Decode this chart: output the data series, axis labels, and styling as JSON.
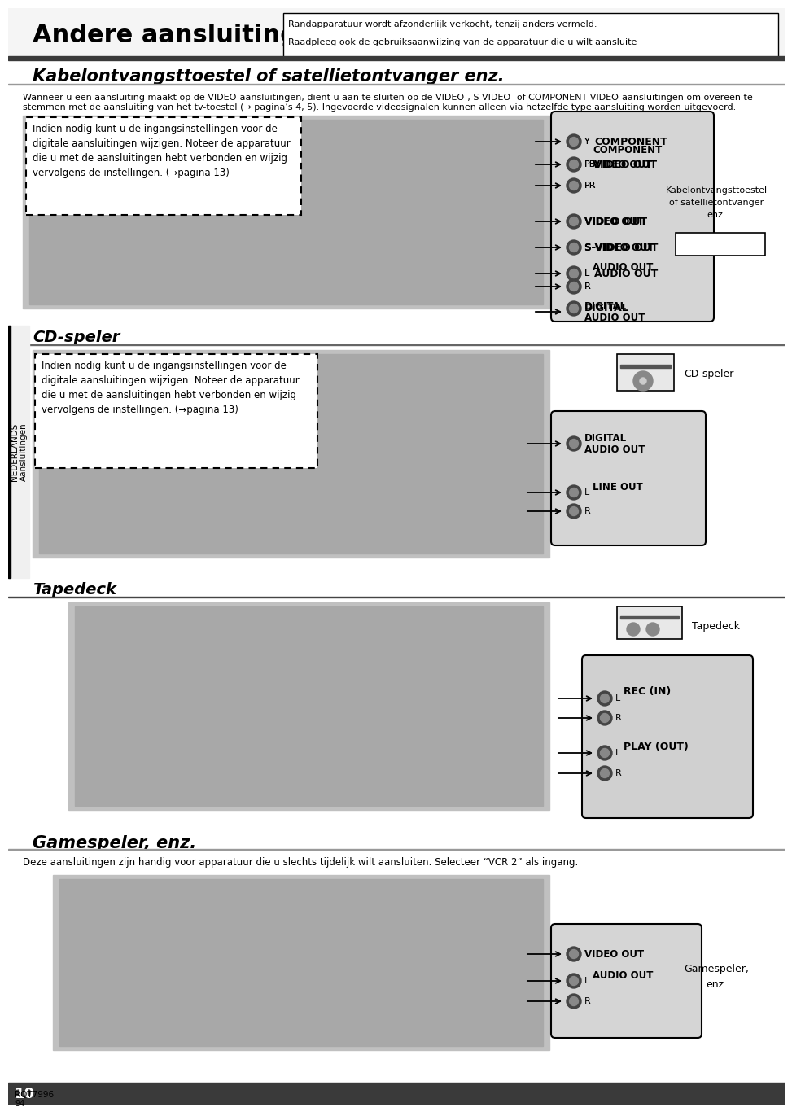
{
  "page_bg": "#ffffff",
  "title_main": "Andere aansluitingen",
  "notice_line1": "Randapparatuur wordt afzonderlijk verkocht, tenzij anders vermeld.",
  "notice_line2": "Raadpleeg ook de gebruiksaanwijzing van de apparatuur die u wilt aansluite",
  "sec1_title": "Kabelontvangsttoestel of satellietontvanger enz.",
  "sec1_body1": "Wanneer u een aansluiting maakt op de VIDEO-aansluitingen, dient u aan te sluiten op de VIDEO-, S VIDEO- of COMPONENT VIDEO-aansluitingen om overeen te",
  "sec1_body2": "stemmen met de aansluiting van het tv-toestel (→ pagina’s 4, 5). Ingevoerde videosignalen kunnen alleen via hetzelfde type aansluiting worden uitgevoerd.",
  "notice_text": "Indien nodig kunt u de ingangsinstellingen voor de\ndigitale aansluitingen wijzigen. Noteer de apparatuur\ndie u met de aansluitingen hebt verbonden en wijzig\nvervolgens de instellingen. (→pagina 13)",
  "sec2_title": "CD-speler",
  "sec3_title": "Tapedeck",
  "sec4_title": "Gamespeler, enz.",
  "sec4_body": "Deze aansluitingen zijn handig voor apparatuur die u slechts tijdelijk wilt aansluiten. Selecteer “VCR 2” als ingang.",
  "device1": "Kabelontvangsttoestel\nof satellietontvanger\nenz.",
  "device2": "CD-speler",
  "device3": "Tapedeck",
  "device4": "Gamespeler,\nenz.",
  "side_top": "NEDERLANDS",
  "side_bot": "Aansluitingen",
  "page_num": "10",
  "rqt": "RQT7996",
  "sub_page": "94"
}
